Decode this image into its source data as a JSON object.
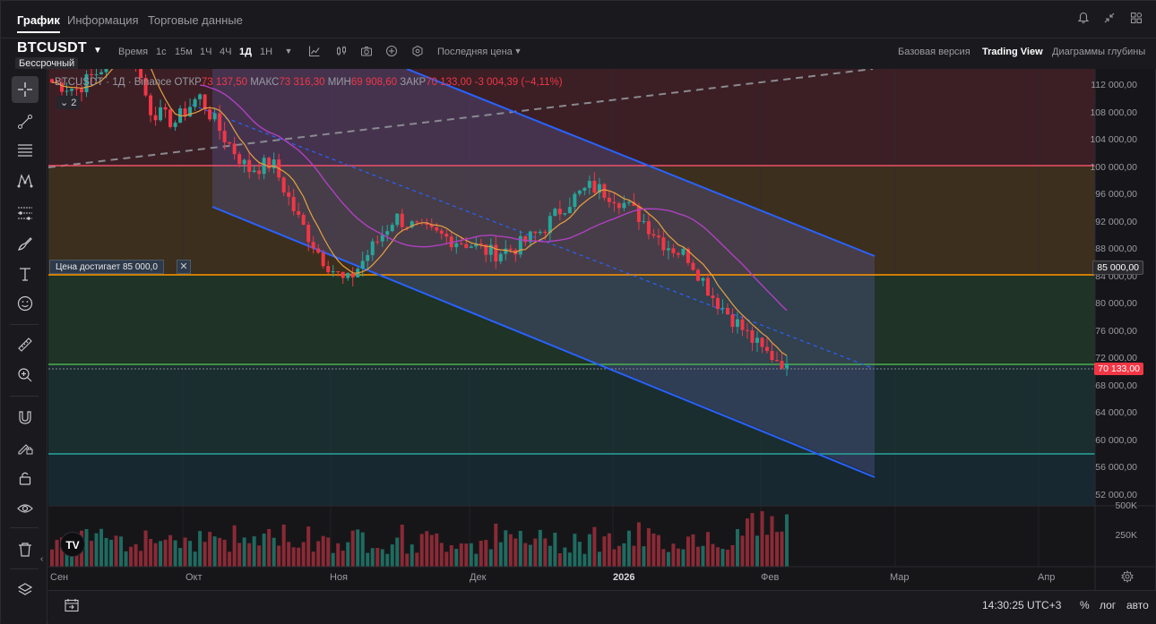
{
  "tabs": [
    {
      "label": "График"
    },
    {
      "label": "Информация"
    },
    {
      "label": "Торговые данные"
    }
  ],
  "symbol": {
    "name": "BTCUSDT",
    "contract": "Бессрочный"
  },
  "timeframes": [
    {
      "label": "Время"
    },
    {
      "label": "1с"
    },
    {
      "label": "15м"
    },
    {
      "label": "1Ч"
    },
    {
      "label": "4Ч"
    },
    {
      "label": "1Д"
    },
    {
      "label": "1Н"
    }
  ],
  "price_mode": "Последняя цена",
  "views": [
    {
      "label": "Базовая версия"
    },
    {
      "label": "Trading View"
    },
    {
      "label": "Диаграммы глубины"
    }
  ],
  "legend": {
    "title": "BTCUSDT · 1Д · Binance",
    "open_label": "ОТКР",
    "open": "73 137,50",
    "high_label": "МАКС",
    "high": "73 316,30",
    "low_label": "МИН",
    "low": "69 908,60",
    "close_label": "ЗАКР",
    "close": "70 133,00",
    "change": "-3 004,39 (−4,11%)",
    "collapsed_count": "2"
  },
  "alert_label": "Цена достигает 85 000,0",
  "price_axis": [
    "112 000,00",
    "108 000,00",
    "104 000,00",
    "100 000,00",
    "96 000,00",
    "92 000,00",
    "88 000,00",
    "84 000,00",
    "80 000,00",
    "76 000,00",
    "72 000,00",
    "68 000,00",
    "64 000,00",
    "60 000,00",
    "56 000,00",
    "52 000,00"
  ],
  "price_tags": {
    "alert": "85 000,00",
    "last": "70 133,00"
  },
  "volume_axis": [
    "500K",
    "250K"
  ],
  "date_axis": [
    "Сен",
    "Окт",
    "Ноя",
    "Дек",
    "2026",
    "Фев",
    "Мар",
    "Апр"
  ],
  "status": {
    "time": "14:30:25 UTC+3",
    "percent": "%",
    "log": "лог",
    "auto": "авто"
  },
  "colors": {
    "up": "#26a69a",
    "down": "#f23645",
    "channel": "#2962ff",
    "alert_line": "#ff9800"
  },
  "left_tools": [
    "crosshair-icon",
    "trend-line-icon",
    "fib-icon",
    "pattern-icon",
    "projection-icon",
    "brush-icon",
    "text-icon",
    "emoji-icon",
    "ruler-icon",
    "zoom-icon",
    "magnet-icon",
    "lock-draw-icon",
    "lock-icon",
    "eye-icon",
    "trash-icon",
    "layers-icon"
  ],
  "chart_data": {
    "type": "candlestick",
    "symbol": "BTCUSDT",
    "interval": "1Д",
    "x": [
      "Сен",
      "Окт",
      "Ноя",
      "Дек",
      "2026",
      "Фев"
    ],
    "close_series_approx": [
      112000,
      111000,
      114000,
      120000,
      108000,
      106000,
      110000,
      104000,
      99000,
      100000,
      92000,
      86000,
      82000,
      87000,
      92000,
      90000,
      89000,
      88000,
      86500,
      87500,
      90000,
      94000,
      96500,
      95000,
      92000,
      88000,
      86000,
      80000,
      76000,
      72000,
      70133
    ],
    "last_close": 70133,
    "horizontal_levels": [
      100000,
      85000,
      71000,
      58000
    ],
    "ylim": [
      50000,
      114000
    ],
    "volume_ylim": [
      0,
      500000
    ]
  }
}
